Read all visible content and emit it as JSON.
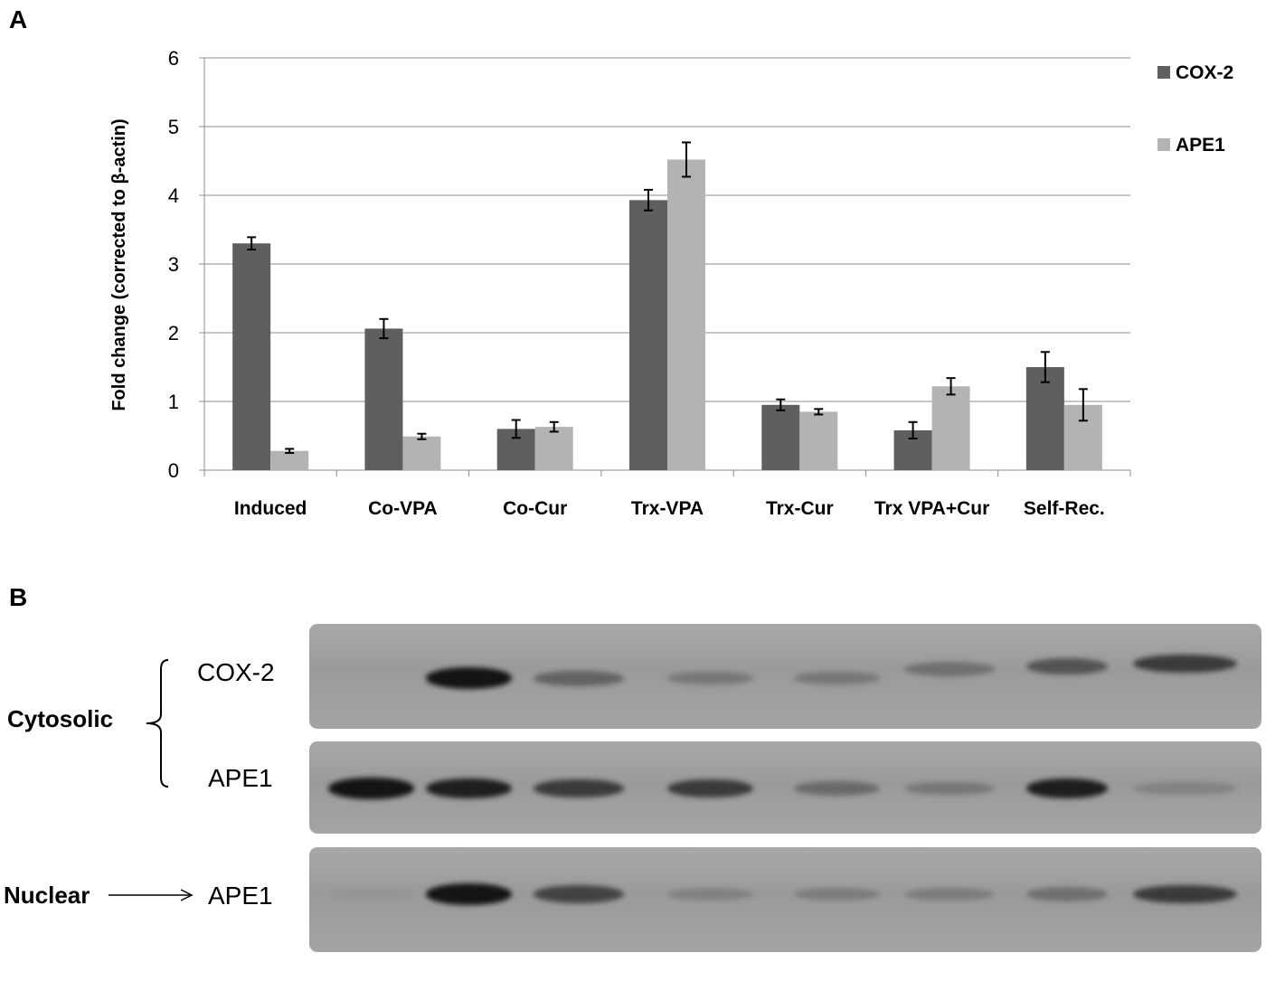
{
  "panel_a_label": "A",
  "panel_b_label": "B",
  "chart_data": {
    "type": "bar",
    "title": "",
    "xlabel": "",
    "ylabel": "Fold change (corrected to β-actin)",
    "ylim": [
      0,
      6
    ],
    "yticks": [
      "0",
      "1",
      "2",
      "3",
      "4",
      "5",
      "6"
    ],
    "grid": true,
    "legend_position": "right",
    "categories": [
      "Induced",
      "Co-VPA",
      "Co-Cur",
      "Trx-VPA",
      "Trx-Cur",
      "Trx VPA+Cur",
      "Self-Rec."
    ],
    "series": [
      {
        "name": "COX-2",
        "color": "#5f5f5f",
        "values": [
          3.3,
          2.06,
          0.6,
          3.93,
          0.95,
          0.58,
          1.5
        ],
        "errors": [
          0.09,
          0.14,
          0.13,
          0.15,
          0.08,
          0.12,
          0.22
        ]
      },
      {
        "name": "APE1",
        "color": "#b3b3b3",
        "values": [
          0.28,
          0.49,
          0.63,
          4.52,
          0.85,
          1.22,
          0.95
        ],
        "errors": [
          0.03,
          0.04,
          0.07,
          0.25,
          0.04,
          0.12,
          0.23
        ]
      }
    ]
  },
  "western_blot": {
    "group_cytosolic": "Cytosolic",
    "group_nuclear": "Nuclear",
    "rows": [
      {
        "label": "COX-2",
        "intensities": [
          0.0,
          0.95,
          0.5,
          0.35,
          0.35,
          0.4,
          0.6,
          0.75
        ]
      },
      {
        "label": "APE1",
        "intensities": [
          0.95,
          0.9,
          0.75,
          0.75,
          0.45,
          0.35,
          0.9,
          0.25
        ]
      },
      {
        "label": "APE1",
        "intensities": [
          0.05,
          0.95,
          0.7,
          0.25,
          0.3,
          0.3,
          0.4,
          0.75
        ]
      }
    ]
  }
}
